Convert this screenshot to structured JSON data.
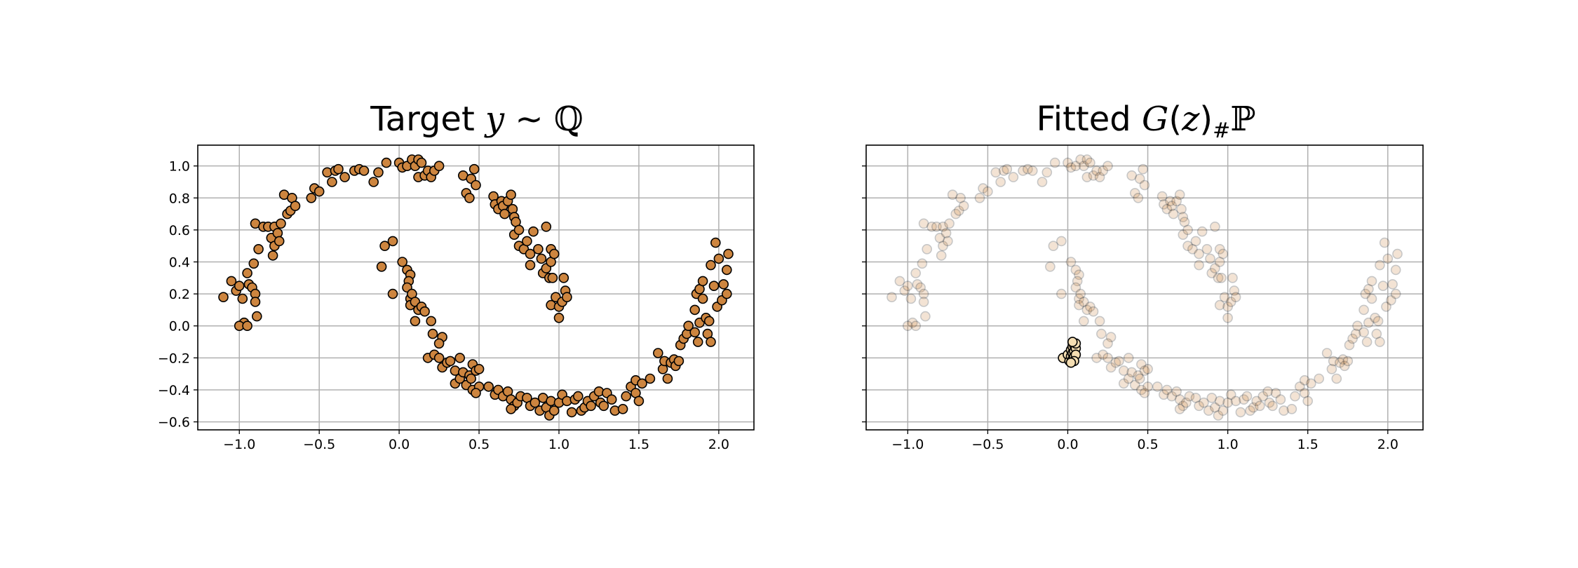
{
  "colors": {
    "point_fill": "#cd853f",
    "point_edge": "#000000",
    "fitted_outlier_fill": "#f5deb3"
  },
  "chart_data": [
    {
      "type": "scatter",
      "title": "Target y ∼ ℚ",
      "title_parts": [
        "Target ",
        "y",
        " ∼ ",
        "ℚ"
      ],
      "xlabel": "",
      "ylabel": "",
      "xlim": [
        -1.26,
        2.22
      ],
      "ylim": [
        -0.65,
        1.13
      ],
      "xticks": [
        -1.0,
        -0.5,
        0.0,
        0.5,
        1.0,
        1.5,
        2.0
      ],
      "xtick_labels": [
        "−1.0",
        "−0.5",
        "0.0",
        "0.5",
        "1.0",
        "1.5",
        "2.0"
      ],
      "yticks": [
        -0.6,
        -0.4,
        -0.2,
        0.0,
        0.2,
        0.4,
        0.6,
        0.8,
        1.0
      ],
      "ytick_labels": [
        "−0.6",
        "−0.4",
        "−0.2",
        "0.0",
        "0.2",
        "0.4",
        "0.6",
        "0.8",
        "1.0"
      ],
      "grid": true,
      "series": [
        {
          "name": "target samples",
          "alpha": 1.0,
          "points": [
            [
              -1.1,
              0.18
            ],
            [
              -1.05,
              0.28
            ],
            [
              -1.02,
              0.22
            ],
            [
              -1.0,
              0.25
            ],
            [
              -0.98,
              0.17
            ],
            [
              -0.97,
              0.02
            ],
            [
              -1.0,
              0.0
            ],
            [
              -0.95,
              0.0
            ],
            [
              -0.94,
              0.26
            ],
            [
              -0.95,
              0.33
            ],
            [
              -0.92,
              0.24
            ],
            [
              -0.9,
              0.2
            ],
            [
              -0.9,
              0.15
            ],
            [
              -0.89,
              0.06
            ],
            [
              -0.91,
              0.39
            ],
            [
              -0.88,
              0.48
            ],
            [
              -0.9,
              0.64
            ],
            [
              -0.85,
              0.62
            ],
            [
              -0.82,
              0.62
            ],
            [
              -0.8,
              0.55
            ],
            [
              -0.79,
              0.44
            ],
            [
              -0.78,
              0.5
            ],
            [
              -0.78,
              0.62
            ],
            [
              -0.76,
              0.58
            ],
            [
              -0.75,
              0.53
            ],
            [
              -0.74,
              0.64
            ],
            [
              -0.72,
              0.82
            ],
            [
              -0.7,
              0.7
            ],
            [
              -0.68,
              0.72
            ],
            [
              -0.67,
              0.8
            ],
            [
              -0.65,
              0.75
            ],
            [
              -0.55,
              0.8
            ],
            [
              -0.53,
              0.86
            ],
            [
              -0.5,
              0.84
            ],
            [
              -0.45,
              0.96
            ],
            [
              -0.42,
              0.9
            ],
            [
              -0.4,
              0.97
            ],
            [
              -0.38,
              0.98
            ],
            [
              -0.34,
              0.93
            ],
            [
              -0.28,
              0.97
            ],
            [
              -0.25,
              0.98
            ],
            [
              -0.22,
              0.97
            ],
            [
              -0.16,
              0.9
            ],
            [
              -0.13,
              0.96
            ],
            [
              -0.08,
              1.02
            ],
            [
              0.0,
              1.02
            ],
            [
              0.02,
              0.99
            ],
            [
              0.05,
              1.0
            ],
            [
              0.08,
              1.04
            ],
            [
              0.1,
              1.0
            ],
            [
              0.12,
              1.04
            ],
            [
              0.12,
              0.93
            ],
            [
              0.14,
              1.02
            ],
            [
              0.16,
              0.94
            ],
            [
              0.18,
              0.97
            ],
            [
              0.2,
              0.93
            ],
            [
              0.22,
              0.97
            ],
            [
              0.25,
              1.0
            ],
            [
              0.4,
              0.94
            ],
            [
              0.42,
              0.83
            ],
            [
              0.44,
              0.8
            ],
            [
              0.45,
              0.92
            ],
            [
              0.48,
              0.88
            ],
            [
              0.47,
              0.98
            ],
            [
              0.59,
              0.81
            ],
            [
              0.6,
              0.76
            ],
            [
              0.62,
              0.73
            ],
            [
              0.64,
              0.78
            ],
            [
              0.65,
              0.75
            ],
            [
              0.66,
              0.7
            ],
            [
              0.68,
              0.78
            ],
            [
              0.7,
              0.82
            ],
            [
              0.71,
              0.73
            ],
            [
              0.72,
              0.68
            ],
            [
              0.72,
              0.57
            ],
            [
              0.73,
              0.65
            ],
            [
              0.75,
              0.6
            ],
            [
              0.75,
              0.5
            ],
            [
              0.78,
              0.48
            ],
            [
              0.8,
              0.53
            ],
            [
              0.82,
              0.45
            ],
            [
              0.82,
              0.38
            ],
            [
              0.84,
              0.59
            ],
            [
              0.87,
              0.48
            ],
            [
              0.89,
              0.42
            ],
            [
              0.9,
              0.33
            ],
            [
              0.92,
              0.62
            ],
            [
              0.92,
              0.36
            ],
            [
              0.94,
              0.3
            ],
            [
              0.95,
              0.4
            ],
            [
              0.95,
              0.48
            ],
            [
              0.96,
              0.3
            ],
            [
              0.97,
              0.45
            ],
            [
              0.95,
              0.13
            ],
            [
              0.98,
              0.18
            ],
            [
              1.0,
              0.12
            ],
            [
              1.0,
              0.05
            ],
            [
              1.02,
              0.15
            ],
            [
              1.03,
              0.3
            ],
            [
              1.04,
              0.22
            ],
            [
              1.05,
              0.18
            ],
            [
              -0.11,
              0.37
            ],
            [
              -0.09,
              0.5
            ],
            [
              -0.04,
              0.53
            ],
            [
              -0.04,
              0.2
            ],
            [
              0.02,
              0.4
            ],
            [
              0.05,
              0.35
            ],
            [
              0.07,
              0.32
            ],
            [
              0.06,
              0.28
            ],
            [
              0.05,
              0.24
            ],
            [
              0.07,
              0.17
            ],
            [
              0.07,
              0.13
            ],
            [
              0.08,
              0.2
            ],
            [
              0.1,
              0.15
            ],
            [
              0.12,
              0.1
            ],
            [
              0.14,
              0.12
            ],
            [
              0.16,
              0.09
            ],
            [
              0.1,
              0.03
            ],
            [
              0.2,
              0.03
            ],
            [
              0.21,
              -0.05
            ],
            [
              0.27,
              -0.07
            ],
            [
              0.25,
              -0.11
            ],
            [
              0.18,
              -0.2
            ],
            [
              0.22,
              -0.18
            ],
            [
              0.25,
              -0.2
            ],
            [
              0.27,
              -0.26
            ],
            [
              0.3,
              -0.23
            ],
            [
              0.32,
              -0.22
            ],
            [
              0.35,
              -0.28
            ],
            [
              0.38,
              -0.2
            ],
            [
              0.35,
              -0.36
            ],
            [
              0.38,
              -0.33
            ],
            [
              0.4,
              -0.29
            ],
            [
              0.42,
              -0.37
            ],
            [
              0.44,
              -0.31
            ],
            [
              0.46,
              -0.24
            ],
            [
              0.48,
              -0.28
            ],
            [
              0.45,
              -0.33
            ],
            [
              0.5,
              -0.27
            ],
            [
              0.46,
              -0.4
            ],
            [
              0.5,
              -0.38
            ],
            [
              0.48,
              -0.42
            ],
            [
              0.56,
              -0.38
            ],
            [
              0.6,
              -0.43
            ],
            [
              0.62,
              -0.4
            ],
            [
              0.65,
              -0.44
            ],
            [
              0.68,
              -0.41
            ],
            [
              0.7,
              -0.46
            ],
            [
              0.72,
              -0.5
            ],
            [
              0.7,
              -0.52
            ],
            [
              0.74,
              -0.48
            ],
            [
              0.76,
              -0.44
            ],
            [
              0.8,
              -0.45
            ],
            [
              0.82,
              -0.5
            ],
            [
              0.85,
              -0.48
            ],
            [
              0.88,
              -0.53
            ],
            [
              0.9,
              -0.45
            ],
            [
              0.92,
              -0.51
            ],
            [
              0.94,
              -0.56
            ],
            [
              0.95,
              -0.47
            ],
            [
              0.97,
              -0.53
            ],
            [
              1.0,
              -0.48
            ],
            [
              1.02,
              -0.43
            ],
            [
              1.05,
              -0.47
            ],
            [
              1.08,
              -0.54
            ],
            [
              1.1,
              -0.46
            ],
            [
              1.12,
              -0.44
            ],
            [
              1.14,
              -0.53
            ],
            [
              1.16,
              -0.51
            ],
            [
              1.18,
              -0.47
            ],
            [
              1.2,
              -0.5
            ],
            [
              1.22,
              -0.44
            ],
            [
              1.25,
              -0.41
            ],
            [
              1.26,
              -0.48
            ],
            [
              1.28,
              -0.5
            ],
            [
              1.3,
              -0.42
            ],
            [
              1.33,
              -0.46
            ],
            [
              1.35,
              -0.53
            ],
            [
              1.4,
              -0.52
            ],
            [
              1.42,
              -0.44
            ],
            [
              1.45,
              -0.38
            ],
            [
              1.48,
              -0.34
            ],
            [
              1.48,
              -0.42
            ],
            [
              1.5,
              -0.47
            ],
            [
              1.52,
              -0.36
            ],
            [
              1.57,
              -0.33
            ],
            [
              1.62,
              -0.17
            ],
            [
              1.65,
              -0.27
            ],
            [
              1.66,
              -0.22
            ],
            [
              1.68,
              -0.33
            ],
            [
              1.7,
              -0.23
            ],
            [
              1.72,
              -0.21
            ],
            [
              1.73,
              -0.25
            ],
            [
              1.75,
              -0.22
            ],
            [
              1.76,
              -0.12
            ],
            [
              1.78,
              -0.08
            ],
            [
              1.8,
              -0.05
            ],
            [
              1.81,
              0.0
            ],
            [
              1.85,
              -0.04
            ],
            [
              1.87,
              -0.1
            ],
            [
              1.88,
              0.02
            ],
            [
              1.85,
              0.1
            ],
            [
              1.86,
              0.2
            ],
            [
              1.88,
              0.23
            ],
            [
              1.9,
              0.17
            ],
            [
              1.9,
              0.28
            ],
            [
              1.92,
              0.05
            ],
            [
              1.93,
              -0.05
            ],
            [
              1.94,
              0.03
            ],
            [
              1.95,
              -0.1
            ],
            [
              1.95,
              0.38
            ],
            [
              1.97,
              0.25
            ],
            [
              1.98,
              0.52
            ],
            [
              1.99,
              0.12
            ],
            [
              2.0,
              0.42
            ],
            [
              2.02,
              0.16
            ],
            [
              2.03,
              0.26
            ],
            [
              2.05,
              0.2
            ],
            [
              2.05,
              0.35
            ],
            [
              2.06,
              0.45
            ]
          ]
        }
      ]
    },
    {
      "type": "scatter",
      "title": "Fitted G(z)#ℙ",
      "title_parts": [
        "Fitted ",
        "G",
        "(",
        "z",
        ")",
        "#",
        "ℙ"
      ],
      "xlabel": "",
      "ylabel": "",
      "xlim": [
        -1.26,
        2.22
      ],
      "ylim": [
        -0.65,
        1.13
      ],
      "xticks": [
        -1.0,
        -0.5,
        0.0,
        0.5,
        1.0,
        1.5,
        2.0
      ],
      "xtick_labels": [
        "−1.0",
        "−0.5",
        "0.0",
        "0.5",
        "1.0",
        "1.5",
        "2.0"
      ],
      "yticks": [
        -0.6,
        -0.4,
        -0.2,
        0.0,
        0.2,
        0.4,
        0.6,
        0.8,
        1.0
      ],
      "ytick_labels": [],
      "grid": true,
      "series": [
        {
          "name": "target samples (faded)",
          "alpha": 0.22,
          "same_as_target": true
        },
        {
          "name": "fitted samples",
          "alpha": 1.0,
          "points": [
            [
              -0.03,
              -0.2
            ],
            [
              0.0,
              -0.18
            ],
            [
              0.01,
              -0.22
            ],
            [
              0.02,
              -0.15
            ],
            [
              0.02,
              -0.19
            ],
            [
              0.03,
              -0.13
            ],
            [
              0.03,
              -0.17
            ],
            [
              0.03,
              -0.21
            ],
            [
              0.04,
              -0.12
            ],
            [
              0.04,
              -0.16
            ],
            [
              0.04,
              -0.19
            ],
            [
              0.05,
              -0.14
            ],
            [
              0.05,
              -0.18
            ],
            [
              0.04,
              -0.22
            ],
            [
              0.02,
              -0.23
            ],
            [
              0.05,
              -0.11
            ],
            [
              0.03,
              -0.1
            ]
          ]
        }
      ]
    }
  ]
}
